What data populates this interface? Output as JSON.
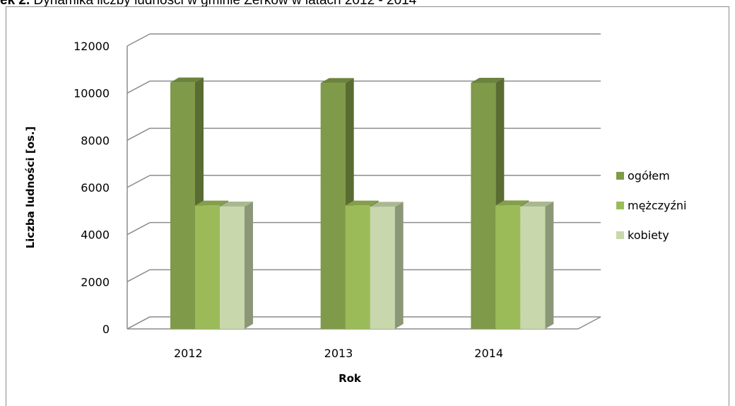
{
  "caption": {
    "prefix": "ek 2.",
    "text": " Dynamika liczby ludności w gminie Żerków w latach 2012 - 2014"
  },
  "chart_data": {
    "type": "bar",
    "categories": [
      "2012",
      "2013",
      "2014"
    ],
    "series": [
      {
        "name": "ogółem",
        "values": [
          10450,
          10430,
          10440
        ],
        "color": "#7f9a48"
      },
      {
        "name": "mężczyźni",
        "values": [
          5230,
          5230,
          5240
        ],
        "color": "#9bbb59"
      },
      {
        "name": "kobiety",
        "values": [
          5190,
          5180,
          5190
        ],
        "color": "#c8d8ac"
      }
    ],
    "xlabel": "Rok",
    "ylabel": "Liczba ludności [os.]",
    "ylim": [
      0,
      12000
    ],
    "yticks": [
      "0",
      "2000",
      "4000",
      "6000",
      "8000",
      "10000",
      "12000"
    ],
    "grid": true,
    "legend": "right"
  }
}
